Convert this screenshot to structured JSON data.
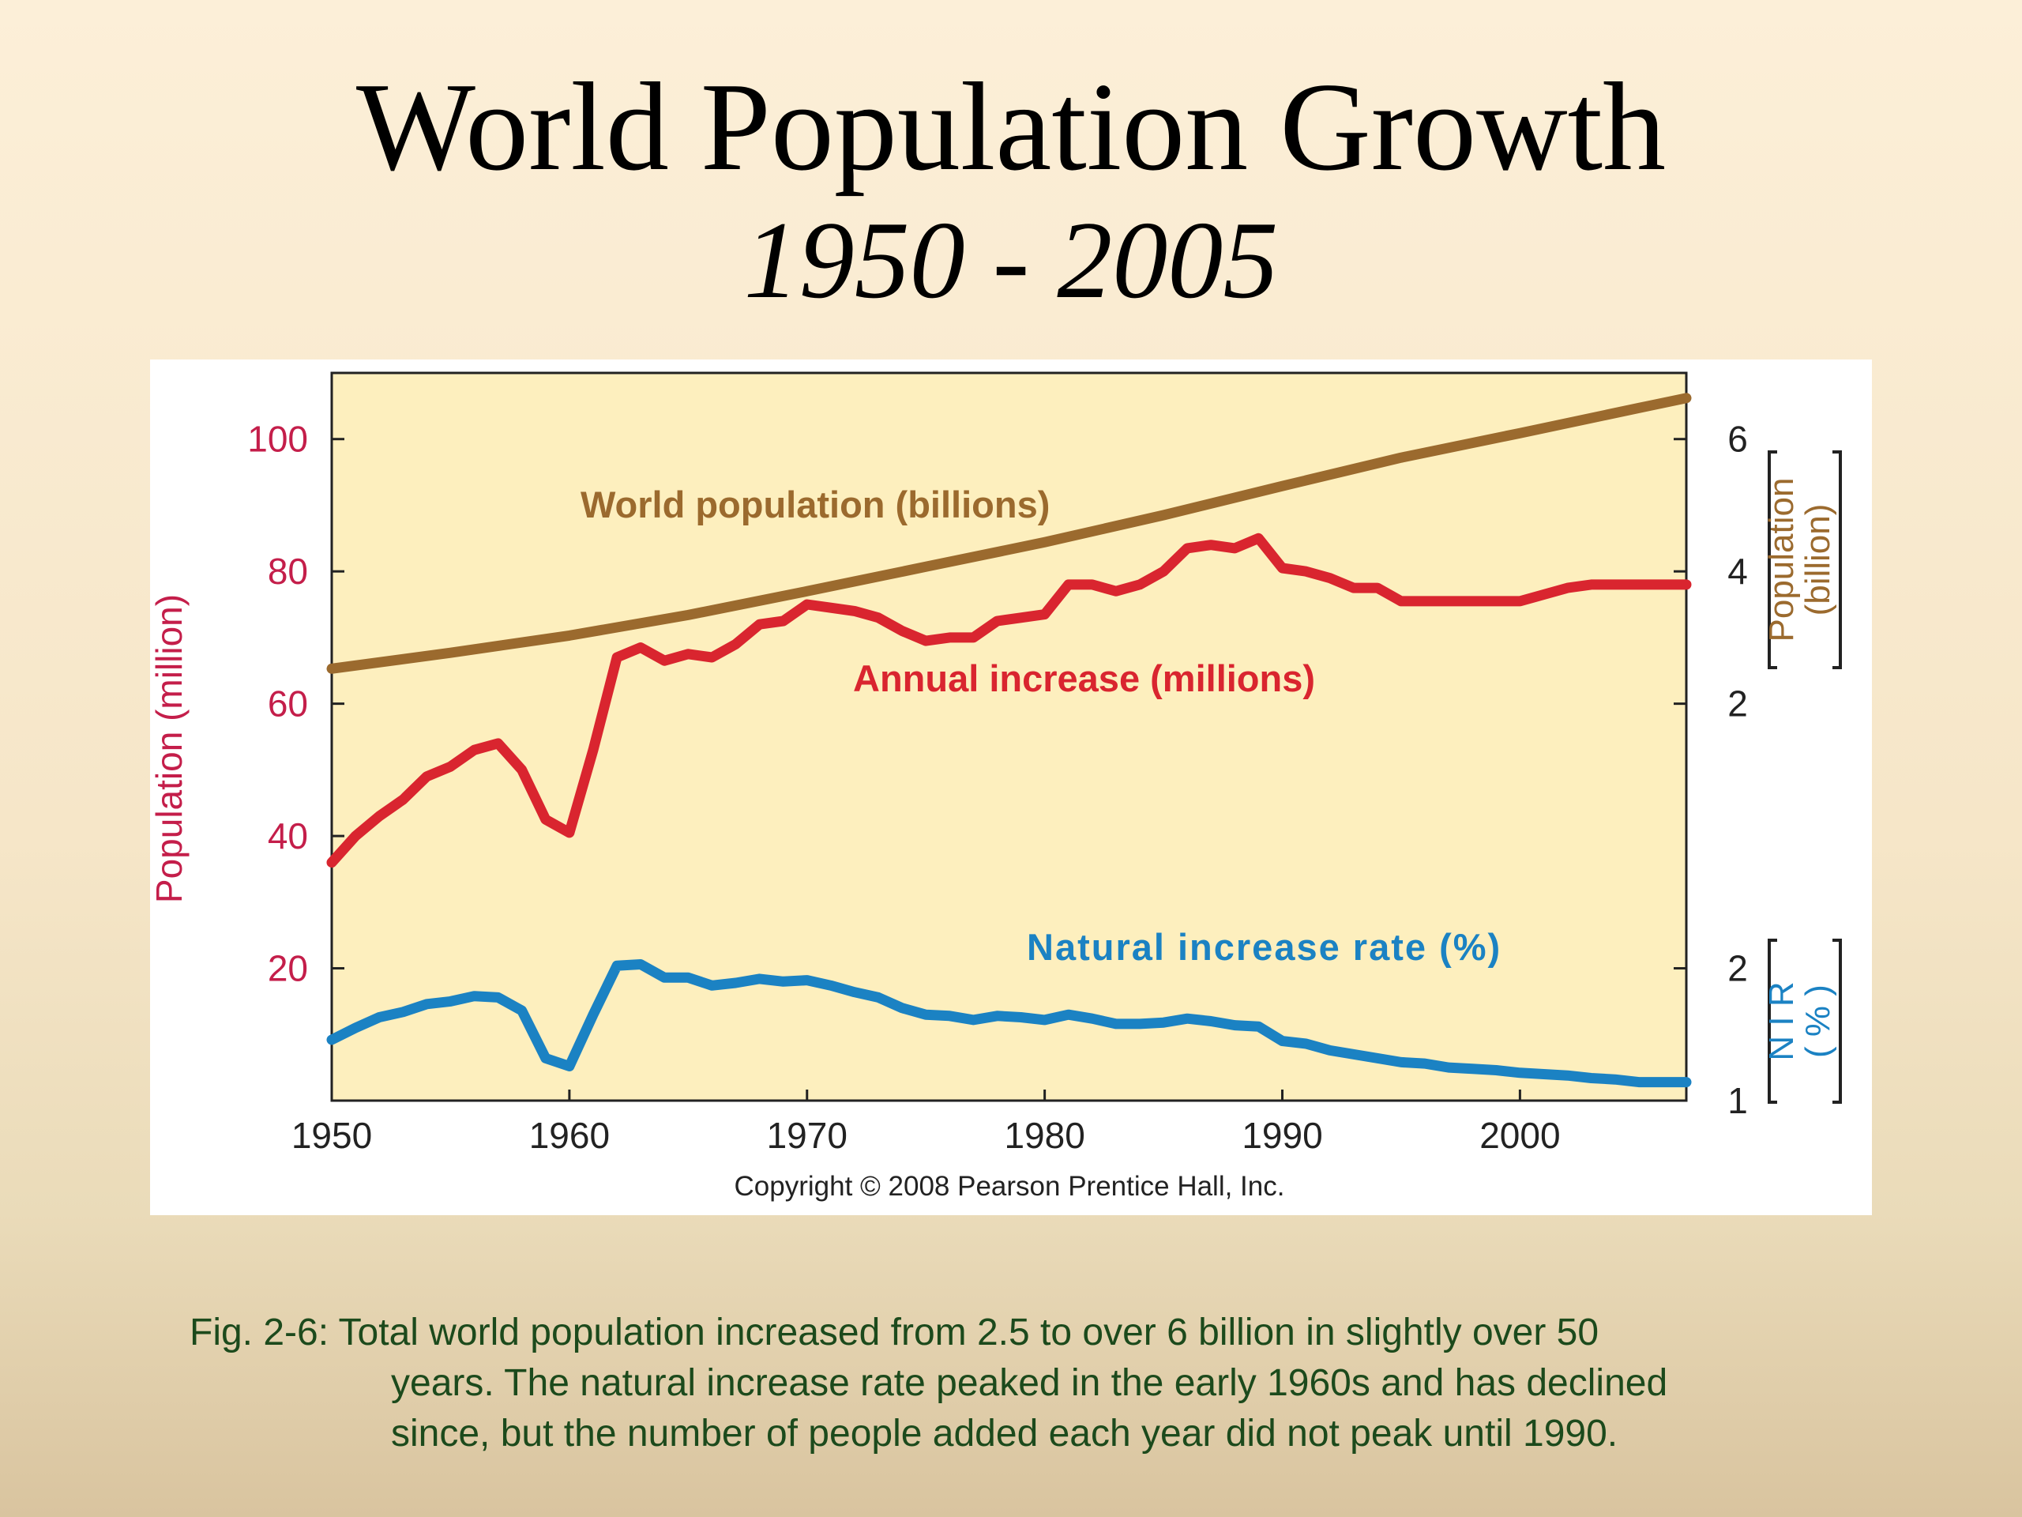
{
  "slide": {
    "title": "World Population Growth",
    "subtitle": "1950 - 2005",
    "caption_lines": [
      "Fig. 2-6: Total world population increased from 2.5 to over 6 billion in slightly over 50",
      "years. The natural increase rate peaked in the early 1960s and has declined",
      "since, but the number of people added each year did not peak until 1990."
    ]
  },
  "colors": {
    "plot_background": "#fdefbe",
    "population": "#9b6a2e",
    "annual_increase": "#d9252f",
    "nir": "#1b82c3",
    "left_axis": "#c41e4a"
  },
  "chart_data": {
    "type": "line",
    "xlim": [
      1950,
      2007
    ],
    "x_ticks": [
      "1950",
      "1960",
      "1970",
      "1980",
      "1990",
      "2000"
    ],
    "left_axis": {
      "label": "Population (million)",
      "ticks": [
        "20",
        "40",
        "60",
        "80",
        "100"
      ],
      "ylim": [
        0,
        110
      ]
    },
    "right_axis_population": {
      "label_line1": "Population",
      "label_line2": "(billion)",
      "ticks": [
        "2",
        "4",
        "6"
      ]
    },
    "right_axis_nir": {
      "label_line1": "N I R",
      "label_line2": "( % )",
      "ticks": [
        "1",
        "2"
      ]
    },
    "copyright": "Copyright © 2008 Pearson Prentice Hall, Inc.",
    "series": [
      {
        "name": "World population (billions)",
        "axis": "population",
        "x": [
          1950,
          1955,
          1960,
          1965,
          1970,
          1975,
          1980,
          1985,
          1990,
          1995,
          2000,
          2005,
          2007
        ],
        "y": [
          2.53,
          2.77,
          3.03,
          3.34,
          3.7,
          4.07,
          4.44,
          4.85,
          5.29,
          5.72,
          6.09,
          6.47,
          6.62
        ]
      },
      {
        "name": "Annual increase (millions)",
        "axis": "left",
        "x": [
          1950,
          1951,
          1952,
          1953,
          1954,
          1955,
          1956,
          1957,
          1958,
          1959,
          1960,
          1961,
          1962,
          1963,
          1964,
          1965,
          1966,
          1967,
          1968,
          1969,
          1970,
          1971,
          1972,
          1973,
          1974,
          1975,
          1976,
          1977,
          1978,
          1979,
          1980,
          1981,
          1982,
          1983,
          1984,
          1985,
          1986,
          1987,
          1988,
          1989,
          1990,
          1991,
          1992,
          1993,
          1994,
          1995,
          1996,
          1997,
          1998,
          1999,
          2000,
          2001,
          2002,
          2003,
          2004,
          2005,
          2006,
          2007
        ],
        "y": [
          36,
          40,
          43,
          45.5,
          49,
          50.5,
          53,
          54,
          50,
          42.5,
          40.5,
          53,
          67,
          68.5,
          66.5,
          67.5,
          67,
          69,
          72,
          72.5,
          75,
          74.5,
          74,
          73,
          71,
          69.5,
          70,
          70,
          72.5,
          73,
          73.5,
          78,
          78,
          77,
          78,
          80,
          83.5,
          84,
          83.5,
          85,
          80.5,
          80,
          79,
          77.5,
          77.5,
          75.5,
          75.5,
          75.5,
          75.5,
          75.5,
          75.5,
          76.5,
          77.5,
          78,
          78,
          78,
          78,
          78
        ]
      },
      {
        "name": "Natural increase rate (%)",
        "axis": "nir",
        "x": [
          1950,
          1951,
          1952,
          1953,
          1954,
          1955,
          1956,
          1957,
          1958,
          1959,
          1960,
          1961,
          1962,
          1963,
          1964,
          1965,
          1966,
          1967,
          1968,
          1969,
          1970,
          1971,
          1972,
          1973,
          1974,
          1975,
          1976,
          1977,
          1978,
          1979,
          1980,
          1981,
          1982,
          1983,
          1984,
          1985,
          1986,
          1987,
          1988,
          1989,
          1990,
          1991,
          1992,
          1993,
          1994,
          1995,
          1996,
          1997,
          1998,
          1999,
          2000,
          2001,
          2002,
          2003,
          2004,
          2005,
          2006,
          2007
        ],
        "y": [
          1.46,
          1.55,
          1.63,
          1.67,
          1.73,
          1.75,
          1.79,
          1.78,
          1.68,
          1.32,
          1.26,
          1.65,
          2.02,
          2.03,
          1.93,
          1.93,
          1.87,
          1.89,
          1.92,
          1.9,
          1.91,
          1.87,
          1.82,
          1.78,
          1.7,
          1.65,
          1.64,
          1.61,
          1.64,
          1.63,
          1.61,
          1.65,
          1.62,
          1.58,
          1.58,
          1.59,
          1.62,
          1.6,
          1.57,
          1.56,
          1.45,
          1.43,
          1.38,
          1.35,
          1.32,
          1.29,
          1.28,
          1.25,
          1.24,
          1.23,
          1.21,
          1.2,
          1.19,
          1.17,
          1.16,
          1.14,
          1.14,
          1.14
        ]
      }
    ],
    "annotations": [
      {
        "series": 0,
        "text": "World population (billions)"
      },
      {
        "series": 1,
        "text": "Annual increase (millions)"
      },
      {
        "series": 2,
        "text": "Natural increase rate (%)"
      }
    ]
  }
}
